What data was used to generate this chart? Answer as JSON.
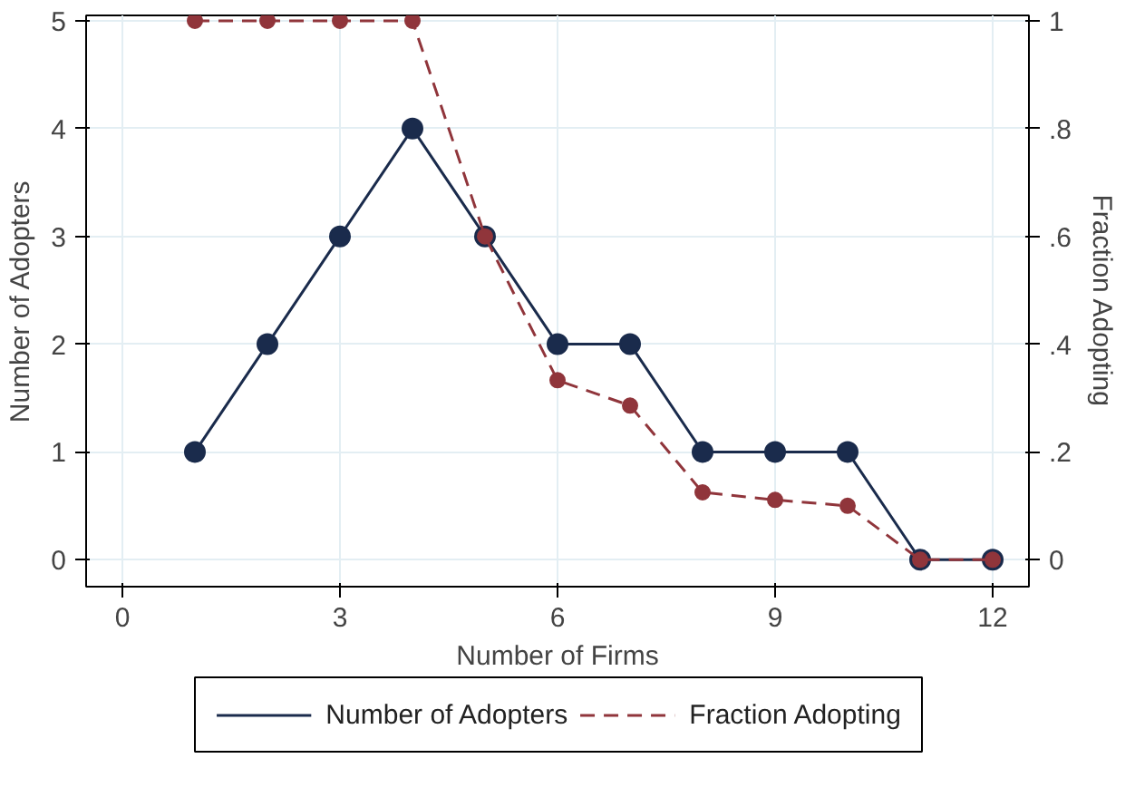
{
  "chart_data": {
    "type": "line",
    "xlabel": "Number of Firms",
    "ylabel": "Number of Adopters",
    "y2label": "Fraction Adopting",
    "x": [
      1,
      2,
      3,
      4,
      5,
      6,
      7,
      8,
      9,
      10,
      11,
      12
    ],
    "series": [
      {
        "name": "Number of Adopters",
        "color": "#1a2b4c",
        "line_style": "solid",
        "values": [
          1,
          2,
          3,
          4,
          3,
          2,
          2,
          1,
          1,
          1,
          0,
          0
        ]
      },
      {
        "name": "Fraction Adopting",
        "color": "#90353b",
        "line_style": "dashed",
        "axis": "y2",
        "values": [
          1,
          1,
          1,
          1,
          0.6,
          0.333,
          0.286,
          0.125,
          0.111,
          0.1,
          0,
          0
        ]
      }
    ],
    "xlim": [
      -0.5,
      12.5
    ],
    "xticks": [
      0,
      3,
      6,
      9,
      12
    ],
    "ylim": [
      -0.25,
      5.05
    ],
    "yticks": [
      0,
      1,
      2,
      3,
      4,
      5
    ],
    "y2lim": [
      -0.05,
      1.01
    ],
    "y2ticks": [
      0,
      {
        "value": 0.2,
        "label": ".2"
      },
      {
        "value": 0.4,
        "label": ".4"
      },
      {
        "value": 0.6,
        "label": ".6"
      },
      {
        "value": 0.8,
        "label": ".8"
      },
      1
    ],
    "grid": true,
    "legend": "bottom",
    "marker": "circle"
  }
}
